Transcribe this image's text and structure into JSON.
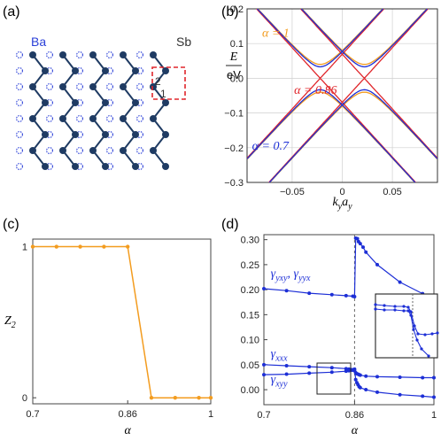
{
  "panels": {
    "a": {
      "label": "(a)",
      "ba_label": "Ba",
      "sb_label": "Sb",
      "site_1": "1",
      "site_2": "2",
      "colors": {
        "atom": "#1f3b63",
        "ba": "#2a3fd8",
        "box": "#e0262b"
      }
    },
    "b": {
      "label": "(b)"
    },
    "c": {
      "label": "(c)"
    },
    "d": {
      "label": "(d)"
    }
  },
  "chart_data": [
    {
      "id": "b",
      "type": "line",
      "xlabel_main": "k",
      "xlabel_sub1": "y",
      "xlabel_mid": "a",
      "xlabel_sub2": "y",
      "ylabel_top": "E",
      "ylabel_bottom": "eV",
      "xlim": [
        -0.095,
        0.095
      ],
      "ylim": [
        -0.3,
        0.2
      ],
      "xticks": [
        -0.05,
        0,
        0.05
      ],
      "xticklabels": [
        "−0.05",
        "0",
        "0.05"
      ],
      "yticks": [
        -0.3,
        -0.2,
        -0.1,
        0.0,
        0.1,
        0.2
      ],
      "yticklabels": [
        "−0.3",
        "−0.2",
        "−0.1",
        "0.0",
        "0.1",
        "0.2"
      ],
      "grid": true,
      "annotations": [
        {
          "text": "α = 1",
          "color": "#f39c1f",
          "x": -0.08,
          "y": 0.12
        },
        {
          "text": "α = 0.86",
          "color": "#e0262b",
          "x": -0.048,
          "y": -0.045
        },
        {
          "text": "α = 0.7",
          "color": "#1d2fd6",
          "x": -0.09,
          "y": -0.205
        }
      ],
      "series": [
        {
          "color": "#f39c1f",
          "gap": 0.04,
          "v": 3.15,
          "offset": 0.022
        },
        {
          "color": "#e0262b",
          "gap": 0.0,
          "v": 3.15,
          "offset": 0.022
        },
        {
          "color": "#1d2fd6",
          "gap": 0.033,
          "v": 3.15,
          "offset": 0.022
        }
      ]
    },
    {
      "id": "c",
      "type": "line",
      "ylabel_main": "Z",
      "ylabel_sub": "2",
      "xlabel": "α",
      "xlim": [
        0.7,
        1.0
      ],
      "ylim": [
        -0.04,
        1.05
      ],
      "xticks": [
        0.7,
        0.86,
        1.0
      ],
      "xticklabels": [
        "0.7",
        "0.86",
        "1"
      ],
      "yticks": [
        0,
        1
      ],
      "yticklabels": [
        "0",
        "1"
      ],
      "color": "#f39c1f",
      "x": [
        0.7,
        0.74,
        0.78,
        0.82,
        0.86,
        0.9,
        0.94,
        0.98,
        1.0
      ],
      "values": [
        1,
        1,
        1,
        1,
        1,
        0,
        0,
        0,
        0
      ]
    },
    {
      "id": "d",
      "type": "line",
      "xlabel": "α",
      "xlim": [
        0.7,
        1.0
      ],
      "ylim": [
        -0.03,
        0.31
      ],
      "xticks": [
        0.7,
        0.86,
        1.0
      ],
      "xticklabels": [
        "0.7",
        "0.86",
        "1"
      ],
      "yticks": [
        0.0,
        0.05,
        0.1,
        0.15,
        0.2,
        0.25,
        0.3
      ],
      "yticklabels": [
        "0.00",
        "0.05",
        "0.10",
        "0.15",
        "0.20",
        "0.25",
        "0.30"
      ],
      "vline": 0.86,
      "color": "#1d2fd6",
      "labels": [
        {
          "text": "γyxy, γyyx",
          "main1": "γ",
          "sub1": "yxy",
          "sep": ",",
          "main2": "γ",
          "sub2": "yyx",
          "x": 0.712,
          "y": 0.225
        },
        {
          "text": "γxxx",
          "main1": "γ",
          "sub1": "xxx",
          "x": 0.712,
          "y": 0.065
        },
        {
          "text": "γxyy",
          "main1": "γ",
          "sub1": "xyy",
          "x": 0.712,
          "y": 0.013
        }
      ],
      "series": [
        {
          "name": "γyxy, γyyx",
          "x": [
            0.7,
            0.74,
            0.78,
            0.82,
            0.845,
            0.857,
            0.86,
            0.862,
            0.865,
            0.867,
            0.87,
            0.875,
            0.88,
            0.9,
            0.94,
            0.98,
            1.0
          ],
          "values": [
            0.202,
            0.198,
            0.193,
            0.19,
            0.188,
            0.187,
            0.186,
            0.303,
            0.302,
            0.296,
            0.292,
            0.285,
            0.275,
            0.25,
            0.215,
            0.192,
            0.186
          ]
        },
        {
          "name": "γxxx",
          "x": [
            0.7,
            0.74,
            0.78,
            0.82,
            0.845,
            0.85,
            0.855,
            0.858,
            0.86,
            0.862,
            0.864,
            0.866,
            0.868,
            0.87,
            0.88,
            0.9,
            0.94,
            0.98,
            1.0
          ],
          "values": [
            0.05,
            0.048,
            0.046,
            0.044,
            0.042,
            0.041,
            0.04,
            0.039,
            0.038,
            0.034,
            0.032,
            0.031,
            0.03,
            0.029,
            0.027,
            0.026,
            0.025,
            0.024,
            0.024
          ]
        },
        {
          "name": "γxyy",
          "x": [
            0.7,
            0.74,
            0.78,
            0.82,
            0.845,
            0.85,
            0.855,
            0.858,
            0.86,
            0.862,
            0.864,
            0.866,
            0.868,
            0.87,
            0.88,
            0.9,
            0.94,
            0.98,
            1.0
          ],
          "values": [
            0.03,
            0.031,
            0.033,
            0.035,
            0.037,
            0.038,
            0.039,
            0.04,
            0.041,
            0.02,
            0.014,
            0.01,
            0.006,
            0.004,
            0.0,
            -0.005,
            -0.01,
            -0.013,
            -0.015
          ]
        }
      ]
    }
  ]
}
